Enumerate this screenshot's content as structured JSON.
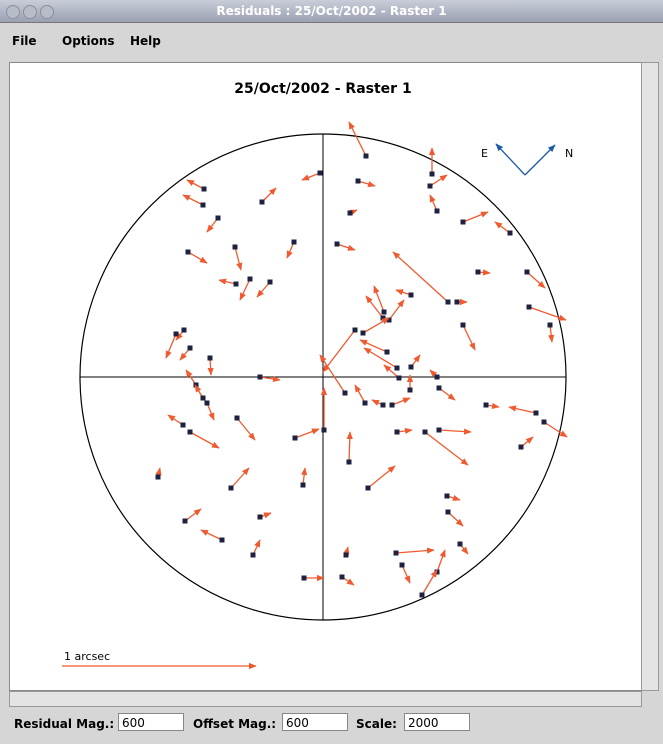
{
  "window_title": "Residuals : 25/Oct/2002 - Raster 1",
  "menu": [
    "File",
    "Options",
    "Help"
  ],
  "plot": {
    "title": "25/Oct/2002 - Raster 1",
    "compass": [
      "E",
      "N"
    ],
    "scale_label": "1 arcsec",
    "vectors": [
      [
        43,
        221,
        -17,
        34
      ],
      [
        -3,
        204,
        -18,
        -7
      ],
      [
        35,
        196,
        17,
        -5
      ],
      [
        107,
        191,
        17,
        11
      ],
      [
        109,
        203,
        0,
        26
      ],
      [
        -119,
        188,
        -17,
        9
      ],
      [
        -120,
        172,
        -20,
        10
      ],
      [
        -61,
        175,
        14,
        14
      ],
      [
        114,
        166,
        -7,
        16
      ],
      [
        27,
        164,
        7,
        3
      ],
      [
        -105,
        159,
        -11,
        -14
      ],
      [
        140,
        155,
        25,
        10
      ],
      [
        187,
        144,
        -15,
        11
      ],
      [
        -29,
        135,
        -7,
        -16
      ],
      [
        -88,
        130,
        6,
        -23
      ],
      [
        14,
        133,
        18,
        -6
      ],
      [
        -135,
        125,
        19,
        -11
      ],
      [
        -73,
        98,
        -10,
        -21
      ],
      [
        -87,
        93,
        -17,
        4
      ],
      [
        -53,
        95,
        -13,
        -15
      ],
      [
        155,
        105,
        12,
        -1
      ],
      [
        204,
        105,
        18,
        -16
      ],
      [
        88,
        82,
        -15,
        5
      ],
      [
        125,
        75,
        -55,
        50
      ],
      [
        134,
        75,
        10,
        0
      ],
      [
        206,
        70,
        37,
        -13
      ],
      [
        61,
        65,
        -10,
        26
      ],
      [
        66,
        57,
        15,
        20
      ],
      [
        60,
        59,
        -17,
        22
      ],
      [
        32,
        47,
        -32,
        -42
      ],
      [
        40,
        44,
        26,
        15
      ],
      [
        140,
        52,
        12,
        -25
      ],
      [
        227,
        52,
        2,
        -17
      ],
      [
        -139,
        47,
        -8,
        -10
      ],
      [
        -147,
        43,
        -10,
        -24
      ],
      [
        -133,
        29,
        -10,
        -12
      ],
      [
        -113,
        19,
        1,
        -17
      ],
      [
        64,
        25,
        -27,
        12
      ],
      [
        74,
        9,
        -33,
        20
      ],
      [
        88,
        10,
        9,
        12
      ],
      [
        76,
        -1,
        -15,
        13
      ],
      [
        -63,
        0,
        20,
        -3
      ],
      [
        -127,
        -8,
        -10,
        15
      ],
      [
        114,
        0,
        -7,
        7
      ],
      [
        87,
        -13,
        0,
        15
      ],
      [
        22,
        -16,
        -25,
        38
      ],
      [
        -120,
        -21,
        -8,
        13
      ],
      [
        -116,
        -26,
        7,
        -17
      ],
      [
        42,
        -26,
        -10,
        18
      ],
      [
        60,
        -28,
        -11,
        5
      ],
      [
        69,
        -28,
        18,
        7
      ],
      [
        116,
        -11,
        16,
        -12
      ],
      [
        163,
        -28,
        13,
        -2
      ],
      [
        213,
        -36,
        -27,
        6
      ],
      [
        221,
        -45,
        23,
        -15
      ],
      [
        -140,
        -48,
        -15,
        10
      ],
      [
        -133,
        -55,
        29,
        -16
      ],
      [
        -86,
        -41,
        18,
        -22
      ],
      [
        -28,
        -61,
        24,
        9
      ],
      [
        1,
        -53,
        0,
        42
      ],
      [
        74,
        -55,
        15,
        2
      ],
      [
        102,
        -55,
        43,
        -33
      ],
      [
        116,
        -53,
        32,
        -2
      ],
      [
        198,
        -70,
        12,
        10
      ],
      [
        -165,
        -100,
        2,
        9
      ],
      [
        -92,
        -111,
        18,
        20
      ],
      [
        -20,
        -108,
        2,
        17
      ],
      [
        26,
        -85,
        1,
        30
      ],
      [
        45,
        -111,
        27,
        22
      ],
      [
        124,
        -119,
        13,
        -4
      ],
      [
        125,
        -135,
        15,
        -14
      ],
      [
        -138,
        -144,
        16,
        12
      ],
      [
        -63,
        -140,
        11,
        4
      ],
      [
        -101,
        -163,
        -21,
        10
      ],
      [
        -70,
        -178,
        7,
        15
      ],
      [
        73,
        -176,
        38,
        3
      ],
      [
        79,
        -188,
        8,
        -18
      ],
      [
        114,
        -195,
        8,
        22
      ],
      [
        137,
        -167,
        8,
        -10
      ],
      [
        23,
        -178,
        2,
        8
      ],
      [
        -19,
        -201,
        20,
        0
      ],
      [
        19,
        -200,
        12,
        -8
      ],
      [
        99,
        -218,
        15,
        25
      ]
    ]
  },
  "fields": [
    {
      "label": "Residual Mag.:",
      "value": "600"
    },
    {
      "label": "Offset Mag.:",
      "value": "600"
    },
    {
      "label": "Scale:",
      "value": "2000"
    }
  ]
}
